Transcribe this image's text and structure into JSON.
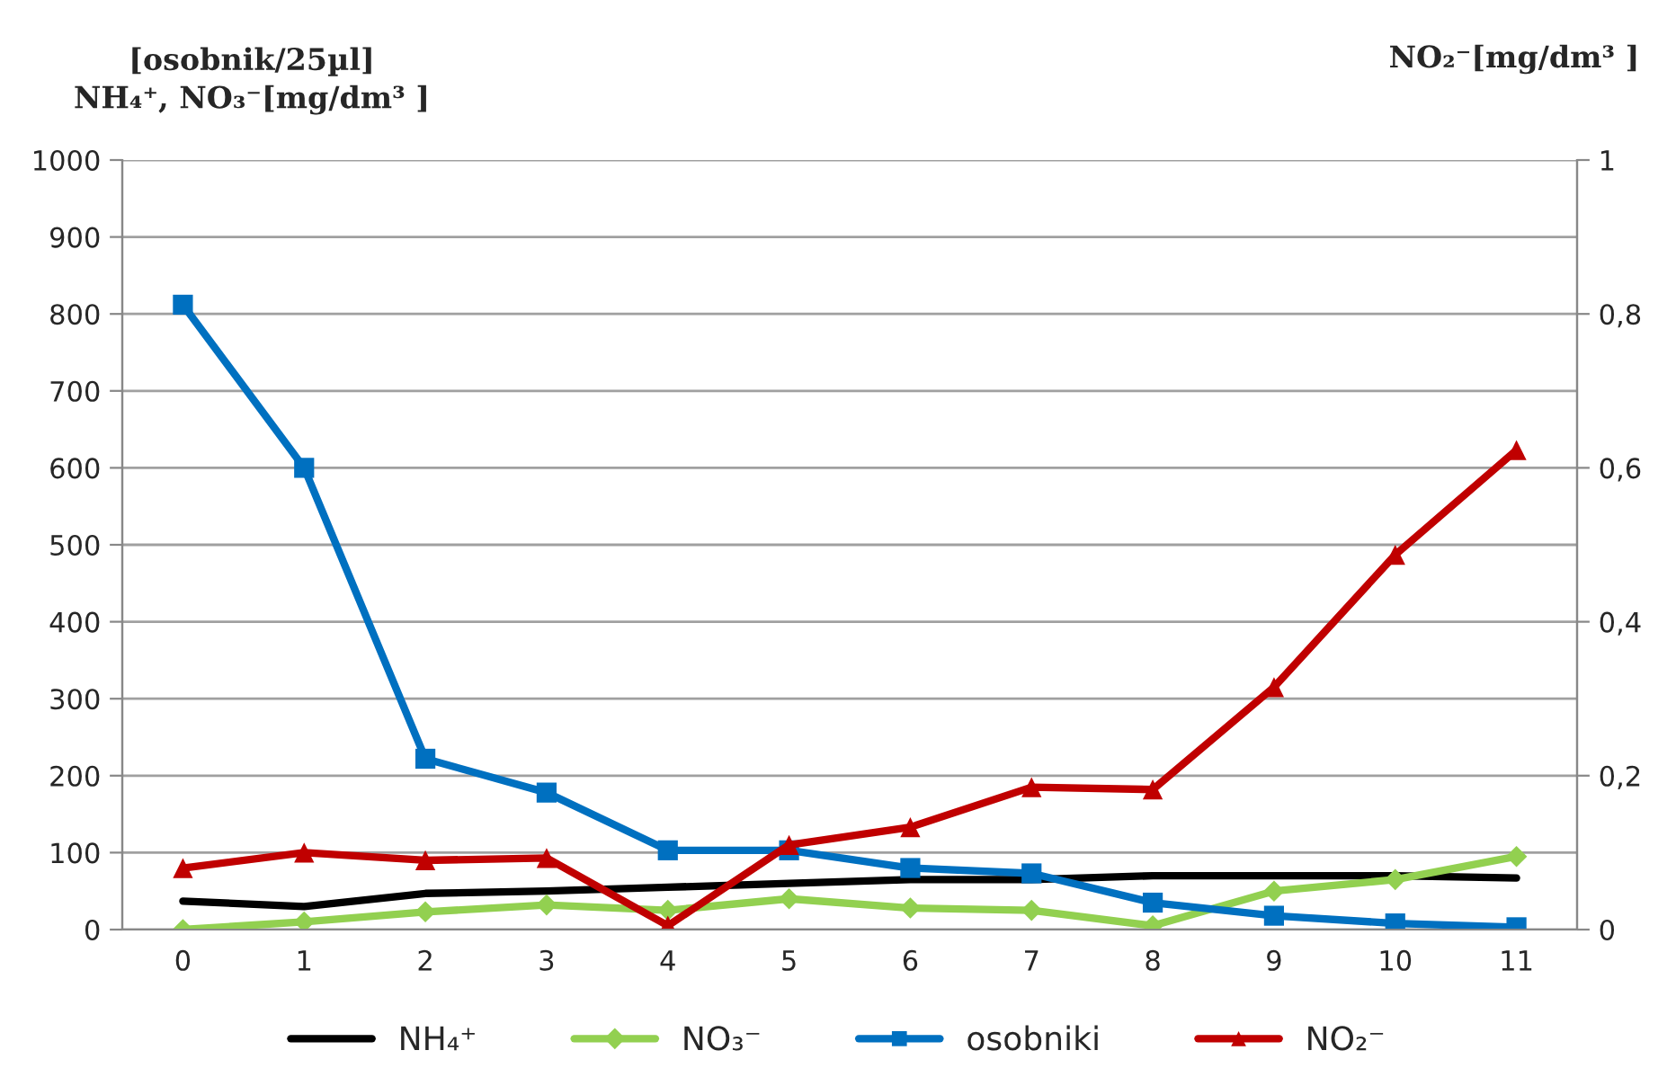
{
  "chart_data": {
    "type": "line",
    "ylabel": "[osobnik/25µl]\nNH₄⁺, NO₃⁻[mg/dm³ ]",
    "y2label": "NO₂⁻[mg/dm³ ]",
    "categories": [
      "0",
      "1",
      "2",
      "3",
      "4",
      "5",
      "6",
      "7",
      "8",
      "9",
      "10",
      "11"
    ],
    "series": [
      {
        "name": "NH₄⁺",
        "color": "#000000",
        "marker": "none",
        "values": [
          37,
          30,
          47,
          50,
          55,
          60,
          65,
          65,
          70,
          70,
          70,
          67
        ]
      },
      {
        "name": "NO₃⁻",
        "color": "#92d050",
        "marker": "diamond",
        "values": [
          0,
          10,
          23,
          32,
          25,
          40,
          28,
          25,
          5,
          50,
          65,
          95
        ]
      },
      {
        "name": "osobniki",
        "color": "#0070c0",
        "marker": "square",
        "values": [
          812,
          600,
          222,
          178,
          103,
          103,
          80,
          73,
          35,
          18,
          8,
          3
        ]
      },
      {
        "name": "NO₂⁻",
        "color": "#c00000",
        "marker": "triangle",
        "axis": "y2",
        "values": [
          0.08,
          0.1,
          0.09,
          0.093,
          0.005,
          0.11,
          0.133,
          0.185,
          0.182,
          0.315,
          0.487,
          0.623
        ]
      }
    ],
    "ylim": [
      0,
      1000
    ],
    "yticks": [
      0,
      100,
      200,
      300,
      400,
      500,
      600,
      700,
      800,
      900,
      1000
    ],
    "y2lim": [
      0,
      1
    ],
    "y2ticks": [
      0,
      {
        "value": 0.2,
        "label": "0,2"
      },
      {
        "value": 0.4,
        "label": "0,4"
      },
      {
        "value": 0.6,
        "label": "0,6"
      },
      {
        "value": 0.8,
        "label": "0,8"
      },
      1
    ],
    "grid": "y",
    "legend": "bottom"
  }
}
